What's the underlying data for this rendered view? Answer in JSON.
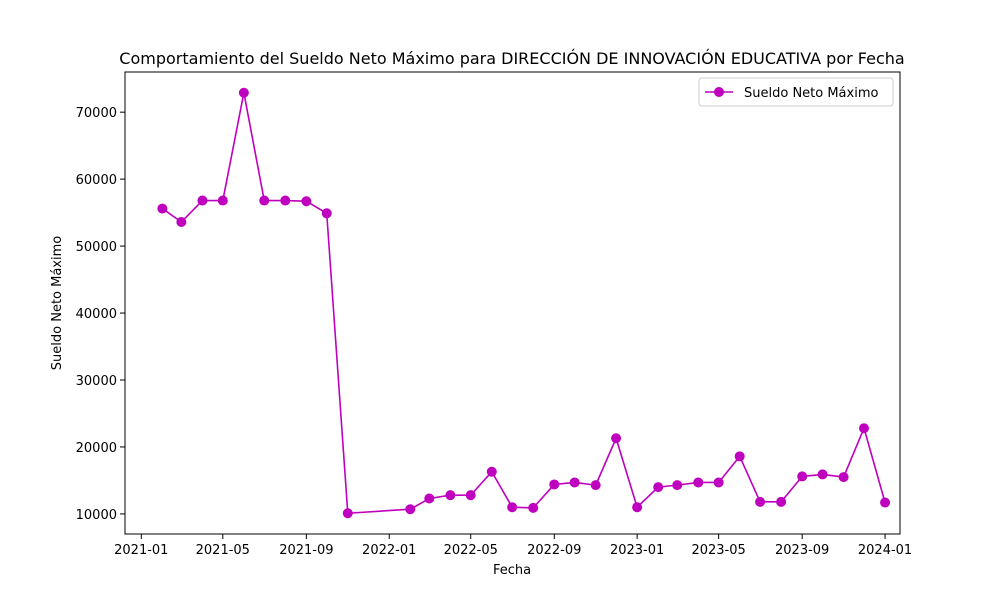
{
  "chart_data": {
    "type": "line",
    "title": "Comportamiento del Sueldo Neto Máximo para DIRECCIÓN DE INNOVACIÓN EDUCATIVA por Fecha",
    "xlabel": "Fecha",
    "ylabel": "Sueldo Neto Máximo",
    "xlim": [
      "2020-12-08",
      "2024-01-23"
    ],
    "ylim": [
      7000,
      76000
    ],
    "x_ticks": [
      "2021-01-01",
      "2021-05-01",
      "2021-09-01",
      "2022-01-01",
      "2022-05-01",
      "2022-09-01",
      "2023-01-01",
      "2023-05-01",
      "2023-09-01",
      "2024-01-01"
    ],
    "x_tick_labels": [
      "2021-01",
      "2021-05",
      "2021-09",
      "2022-01",
      "2022-05",
      "2022-09",
      "2023-01",
      "2023-05",
      "2023-09",
      "2024-01"
    ],
    "y_ticks": [
      10000,
      20000,
      30000,
      40000,
      50000,
      60000,
      70000
    ],
    "y_tick_labels": [
      "10000",
      "20000",
      "30000",
      "40000",
      "50000",
      "60000",
      "70000"
    ],
    "grid": false,
    "legend_position": "top-right",
    "series": [
      {
        "name": "Sueldo Neto Máximo",
        "color": "#bf00bf",
        "marker": "circle",
        "points": [
          {
            "x": "2021-02-01",
            "y": 55600
          },
          {
            "x": "2021-03-01",
            "y": 53600
          },
          {
            "x": "2021-04-01",
            "y": 56800
          },
          {
            "x": "2021-05-01",
            "y": 56800
          },
          {
            "x": "2021-06-01",
            "y": 72900
          },
          {
            "x": "2021-07-01",
            "y": 56800
          },
          {
            "x": "2021-08-01",
            "y": 56800
          },
          {
            "x": "2021-09-01",
            "y": 56700
          },
          {
            "x": "2021-10-01",
            "y": 54900
          },
          {
            "x": "2021-11-01",
            "y": 10100
          },
          {
            "x": "2022-02-01",
            "y": 10700
          },
          {
            "x": "2022-03-01",
            "y": 12300
          },
          {
            "x": "2022-04-01",
            "y": 12800
          },
          {
            "x": "2022-05-01",
            "y": 12800
          },
          {
            "x": "2022-06-01",
            "y": 16300
          },
          {
            "x": "2022-07-01",
            "y": 11000
          },
          {
            "x": "2022-08-01",
            "y": 10900
          },
          {
            "x": "2022-09-01",
            "y": 14400
          },
          {
            "x": "2022-10-01",
            "y": 14700
          },
          {
            "x": "2022-11-01",
            "y": 14300
          },
          {
            "x": "2022-12-01",
            "y": 21300
          },
          {
            "x": "2023-01-01",
            "y": 11000
          },
          {
            "x": "2023-02-01",
            "y": 14000
          },
          {
            "x": "2023-03-01",
            "y": 14300
          },
          {
            "x": "2023-04-01",
            "y": 14700
          },
          {
            "x": "2023-05-01",
            "y": 14700
          },
          {
            "x": "2023-06-01",
            "y": 18600
          },
          {
            "x": "2023-07-01",
            "y": 11800
          },
          {
            "x": "2023-08-01",
            "y": 11800
          },
          {
            "x": "2023-09-01",
            "y": 15600
          },
          {
            "x": "2023-10-01",
            "y": 15900
          },
          {
            "x": "2023-11-01",
            "y": 15500
          },
          {
            "x": "2023-12-01",
            "y": 22800
          },
          {
            "x": "2024-01-01",
            "y": 11700
          }
        ]
      }
    ]
  }
}
